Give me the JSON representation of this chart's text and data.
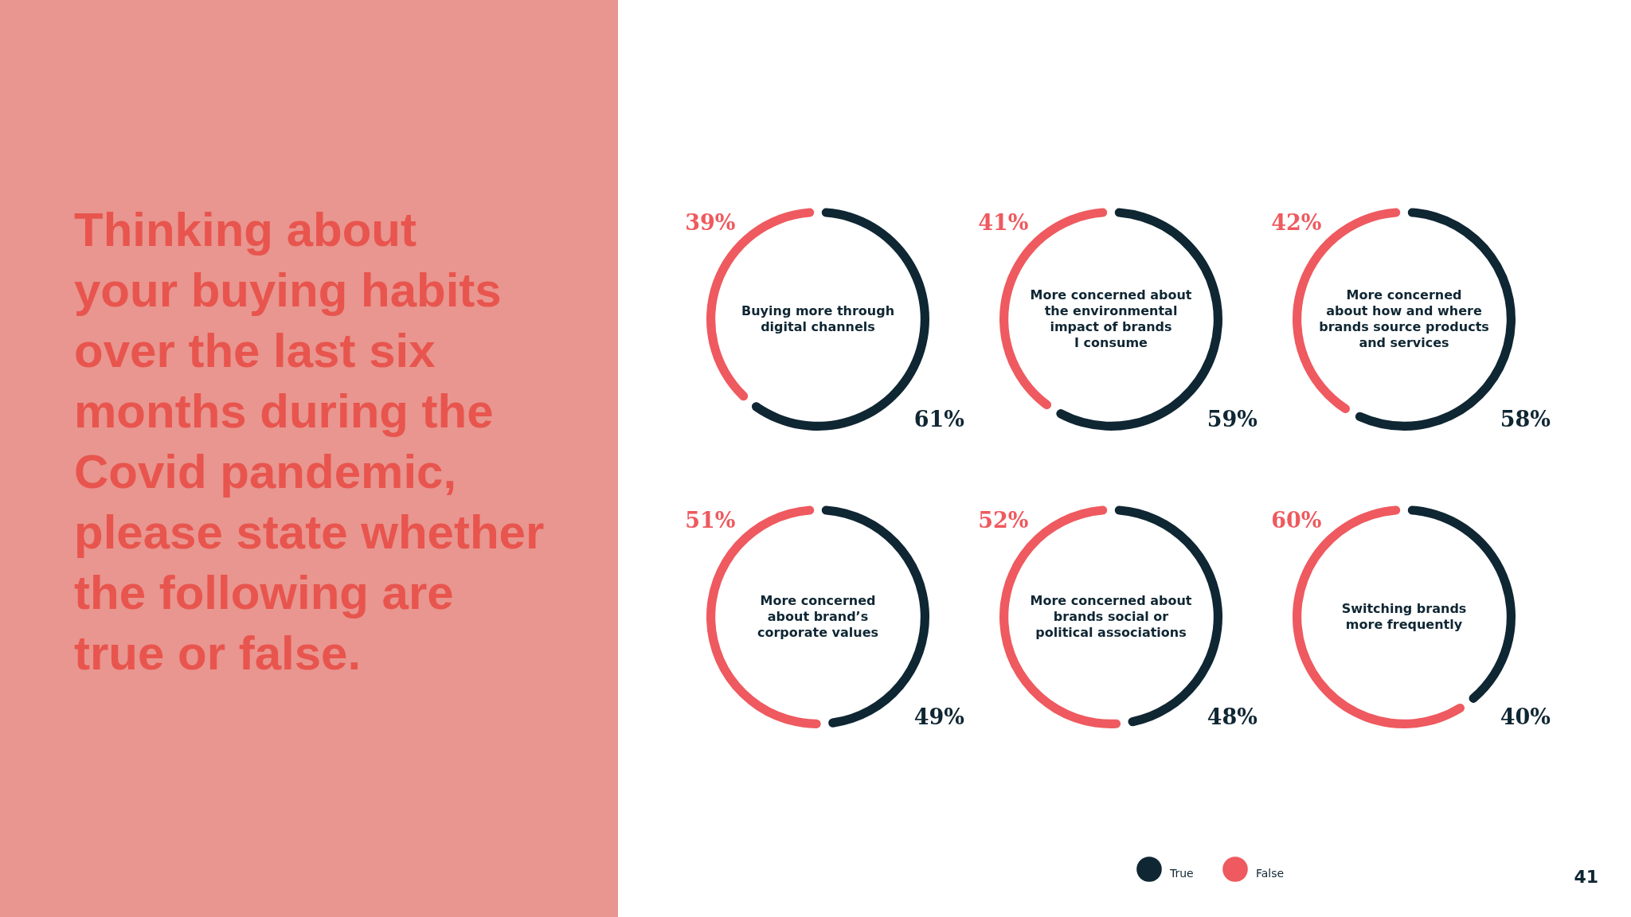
{
  "chart_data": [
    {
      "type": "other",
      "title": "Thinking about\nyour buying habits\nover the last six\nmonths during the\nCovid pandemic,\nplease state whether\nthe following are\ntrue or false.",
      "annotations": [
        "41"
      ]
    },
    {
      "type": "donut",
      "title": "Buying more through\ndigital channels",
      "categories": [
        "True",
        "False"
      ],
      "values": [
        61,
        39
      ],
      "colors": [
        "#0f2633",
        "#ee5a5f"
      ],
      "value_labels": [
        "61%",
        "39%"
      ],
      "legend": "bottom"
    },
    {
      "type": "donut",
      "title": "More concerned about\nthe environmental\nimpact of brands\nI consume",
      "values": [
        59,
        41
      ],
      "colors": [
        "#0f2633",
        "#ee5a5f"
      ],
      "value_labels": [
        "59%",
        "41%"
      ]
    },
    {
      "type": "donut",
      "title": "More concerned\nabout how and where\nbrands source products\nand services",
      "values": [
        58,
        42
      ],
      "colors": [
        "#0f2633",
        "#ee5a5f"
      ],
      "value_labels": [
        "58%",
        "42%"
      ]
    },
    {
      "type": "donut",
      "title": "More concerned\nabout brand’s\ncorporate values",
      "values": [
        49,
        51
      ],
      "colors": [
        "#0f2633",
        "#ee5a5f"
      ],
      "value_labels": [
        "49%",
        "51%"
      ]
    },
    {
      "type": "donut",
      "title": "More concerned about\nbrands social or\npolitical associations",
      "values": [
        48,
        52
      ],
      "colors": [
        "#0f2633",
        "#ee5a5f"
      ],
      "value_labels": [
        "48%",
        "52%"
      ]
    },
    {
      "type": "donut",
      "title": "Switching brands\nmore frequently",
      "values": [
        40,
        60
      ],
      "colors": [
        "#0f2633",
        "#ee5a5f"
      ],
      "value_labels": [
        "40%",
        "60%"
      ]
    }
  ]
}
